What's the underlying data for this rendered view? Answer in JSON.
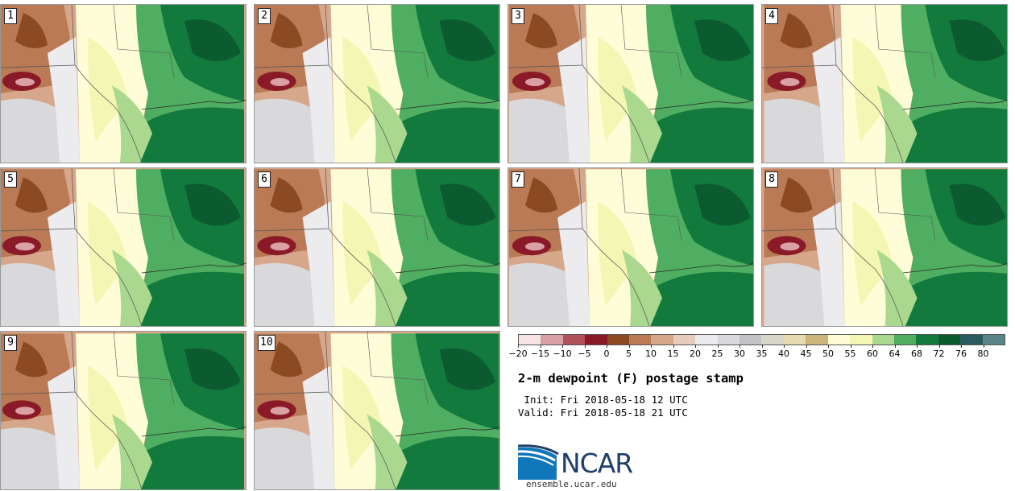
{
  "panels": [
    {
      "label": "1"
    },
    {
      "label": "2"
    },
    {
      "label": "3"
    },
    {
      "label": "4"
    },
    {
      "label": "5"
    },
    {
      "label": "6"
    },
    {
      "label": "7"
    },
    {
      "label": "8"
    },
    {
      "label": "9"
    },
    {
      "label": "10"
    }
  ],
  "legend": {
    "colors": [
      "#f6e4e6",
      "#d9a0a6",
      "#b0505a",
      "#8a1a28",
      "#8c4a22",
      "#b97a55",
      "#d6a78a",
      "#e7cbbc",
      "#ecebee",
      "#d9d9dc",
      "#c2c2c6",
      "#d8d6c8",
      "#e6dbb0",
      "#cdb47a",
      "#fefdd8",
      "#f4f7b4",
      "#a9d88e",
      "#4fae62",
      "#137a3e",
      "#0b5a30",
      "#2a5b5f",
      "#5a8587"
    ],
    "ticks": [
      "−20",
      "−15",
      "−10",
      "−5",
      "0",
      "5",
      "10",
      "15",
      "20",
      "25",
      "30",
      "35",
      "40",
      "45",
      "50",
      "55",
      "60",
      "64",
      "68",
      "72",
      "76",
      "80"
    ]
  },
  "title": "2-m dewpoint (F) postage stamp",
  "init": " Init: Fri 2018-05-18 12 UTC",
  "valid": "Valid: Fri 2018-05-18 21 UTC",
  "logo": {
    "text": "NCAR",
    "site": "ensemble.ucar.edu",
    "color": "#1f3f6b",
    "accent": "#1177bb"
  }
}
